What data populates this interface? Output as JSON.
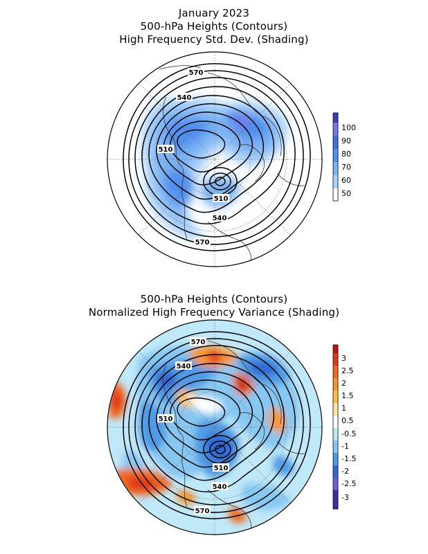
{
  "panel1": {
    "title_lines": [
      "January 2023",
      "500-hPa Heights (Contours)",
      "High Frequency Std. Dev. (Shading)"
    ],
    "contour_labels": [
      "570",
      "540",
      "510",
      "510",
      "540",
      "570"
    ],
    "colorbar": {
      "labels": [
        "100",
        "90",
        "80",
        "70",
        "60",
        "50"
      ],
      "colors": [
        "#3c3cb4",
        "#7a78e8",
        "#3f6fe0",
        "#4f8fef",
        "#7cb4f4",
        "#a9d2fa",
        "#ffffff"
      ]
    }
  },
  "panel2": {
    "title_lines": [
      "500-hPa Heights (Contours)",
      "Normalized High Frequency Variance (Shading)"
    ],
    "contour_labels": [
      "570",
      "540",
      "510",
      "510",
      "540",
      "570"
    ],
    "colorbar": {
      "labels": [
        "3",
        "2.5",
        "2",
        "1.5",
        "1",
        "0.5",
        "-0.5",
        "-1",
        "-1.5",
        "-2",
        "-2.5",
        "-3"
      ],
      "colors": [
        "#c0140f",
        "#e0381e",
        "#f06a22",
        "#f7962e",
        "#fbbf4a",
        "#fde7a0",
        "#ffffff",
        "#bfe8f8",
        "#86c8f2",
        "#4f9be6",
        "#2f6bd6",
        "#6b5fd8",
        "#3b2fa8"
      ]
    }
  }
}
